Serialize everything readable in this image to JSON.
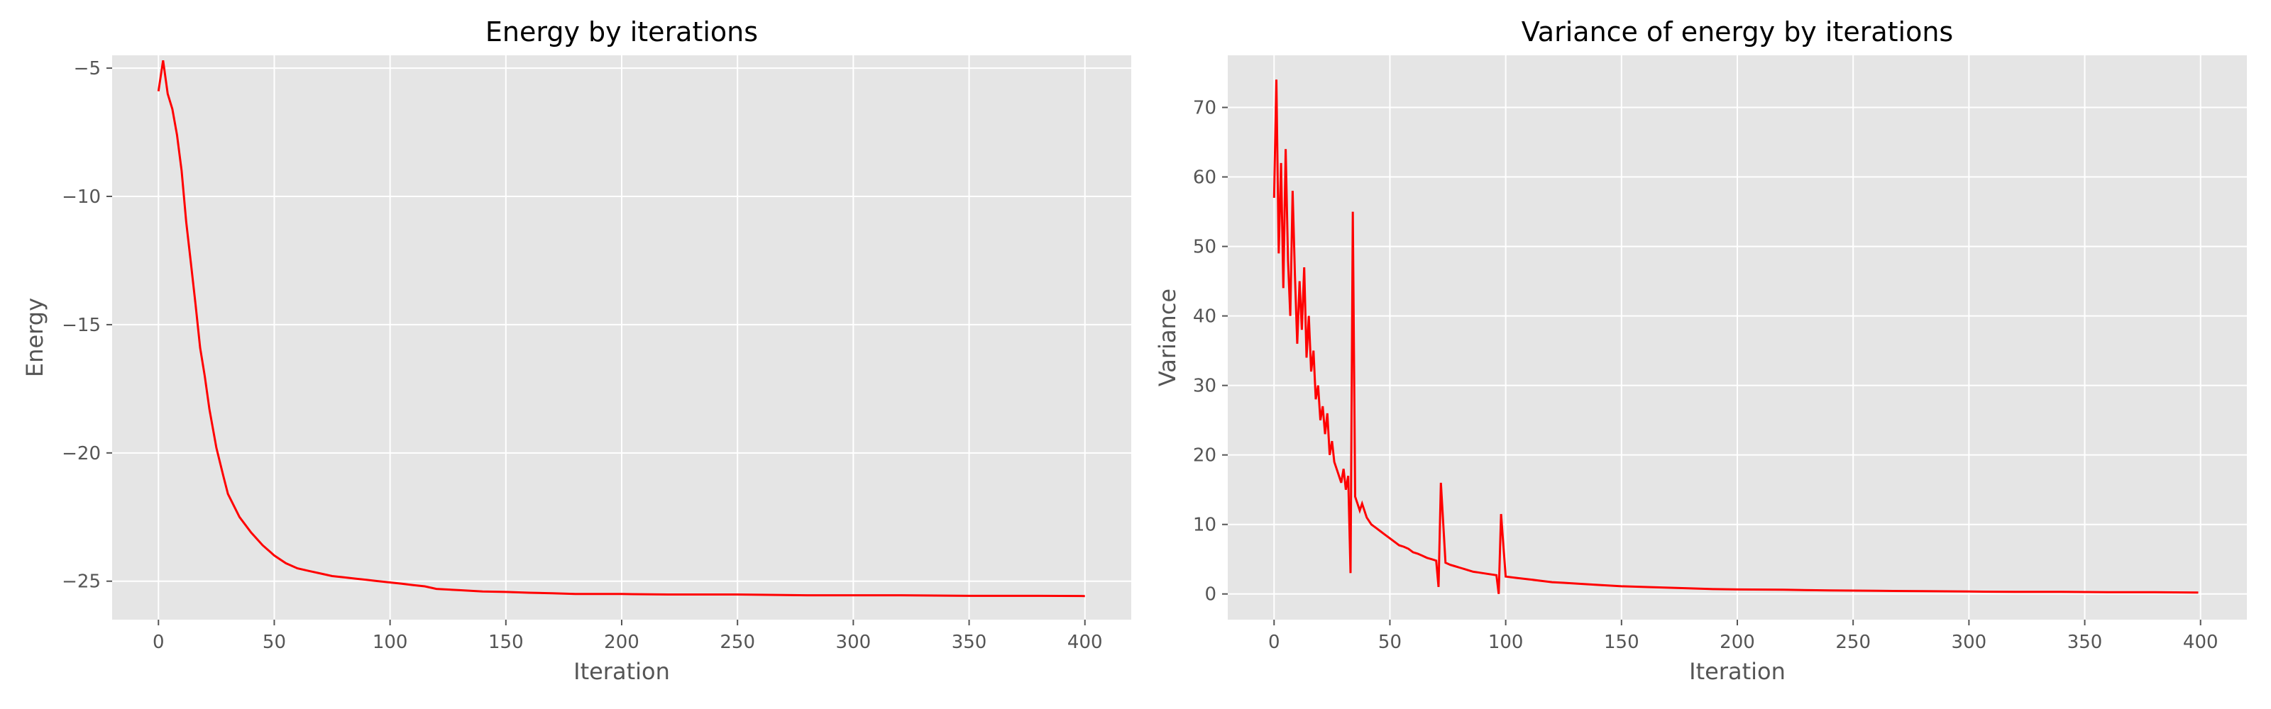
{
  "chart_data": [
    {
      "type": "line",
      "title": "Energy by iterations",
      "xlabel": "Iteration",
      "ylabel": "Energy",
      "xlim": [
        -20,
        420
      ],
      "ylim": [
        -26.5,
        -4.5
      ],
      "xticks": [
        0,
        50,
        100,
        150,
        200,
        250,
        300,
        350,
        400
      ],
      "yticks": [
        -25,
        -20,
        -15,
        -10,
        -5
      ],
      "xtick_labels": [
        "0",
        "50",
        "100",
        "150",
        "200",
        "250",
        "300",
        "350",
        "400"
      ],
      "ytick_labels": [
        "−25",
        "−20",
        "−15",
        "−10",
        "−5"
      ],
      "grid": true,
      "color": "#ff0000",
      "background": "#e5e5e5",
      "series": [
        {
          "x": [
            0,
            2,
            4,
            6,
            8,
            10,
            12,
            14,
            16,
            18,
            20,
            22,
            25,
            28,
            30,
            35,
            40,
            45,
            50,
            55,
            60,
            65,
            70,
            75,
            80,
            85,
            90,
            95,
            100,
            105,
            110,
            115,
            120,
            130,
            140,
            150,
            160,
            170,
            180,
            200,
            220,
            250,
            280,
            300,
            320,
            350,
            380,
            400
          ],
          "y": [
            -5.9,
            -4.7,
            -6.0,
            -6.6,
            -7.6,
            -9.0,
            -11.0,
            -12.6,
            -14.2,
            -15.9,
            -17.0,
            -18.3,
            -19.8,
            -20.9,
            -21.6,
            -22.5,
            -23.1,
            -23.6,
            -24.0,
            -24.3,
            -24.5,
            -24.6,
            -24.7,
            -24.8,
            -24.85,
            -24.9,
            -24.95,
            -25.0,
            -25.05,
            -25.1,
            -25.15,
            -25.2,
            -25.3,
            -25.35,
            -25.4,
            -25.42,
            -25.45,
            -25.47,
            -25.5,
            -25.5,
            -25.52,
            -25.52,
            -25.55,
            -25.55,
            -25.55,
            -25.57,
            -25.57,
            -25.58
          ]
        }
      ]
    },
    {
      "type": "line",
      "title": "Variance of energy by iterations",
      "xlabel": "Iteration",
      "ylabel": "Variance",
      "xlim": [
        -20,
        420
      ],
      "ylim": [
        -3.7,
        77.5
      ],
      "xticks": [
        0,
        50,
        100,
        150,
        200,
        250,
        300,
        350,
        400
      ],
      "yticks": [
        0,
        10,
        20,
        30,
        40,
        50,
        60,
        70
      ],
      "xtick_labels": [
        "0",
        "50",
        "100",
        "150",
        "200",
        "250",
        "300",
        "350",
        "400"
      ],
      "ytick_labels": [
        "0",
        "10",
        "20",
        "30",
        "40",
        "50",
        "60",
        "70"
      ],
      "grid": true,
      "color": "#ff0000",
      "background": "#e5e5e5",
      "series": [
        {
          "x": [
            0,
            1,
            2,
            3,
            4,
            5,
            6,
            7,
            8,
            9,
            10,
            11,
            12,
            13,
            14,
            15,
            16,
            17,
            18,
            19,
            20,
            21,
            22,
            23,
            24,
            25,
            26,
            27,
            28,
            29,
            30,
            31,
            32,
            33,
            34,
            35,
            36,
            37,
            38,
            40,
            42,
            44,
            46,
            48,
            50,
            52,
            54,
            56,
            58,
            60,
            62,
            64,
            66,
            68,
            70,
            71,
            72,
            74,
            76,
            78,
            80,
            82,
            84,
            86,
            88,
            90,
            92,
            94,
            96,
            97,
            98,
            100,
            105,
            110,
            115,
            120,
            125,
            130,
            140,
            150,
            160,
            170,
            180,
            190,
            200,
            220,
            240,
            260,
            280,
            300,
            320,
            340,
            360,
            380,
            399
          ],
          "y": [
            57,
            74,
            49,
            62,
            44,
            64,
            48,
            40,
            58,
            46,
            36,
            45,
            38,
            47,
            34,
            40,
            32,
            35,
            28,
            30,
            25,
            27,
            23,
            26,
            20,
            22,
            19,
            18,
            17,
            16,
            18,
            15,
            17,
            3,
            55,
            14,
            13,
            12,
            13,
            11,
            10,
            9.5,
            9,
            8.5,
            8,
            7.5,
            7,
            6.8,
            6.5,
            6,
            5.8,
            5.5,
            5.2,
            5,
            4.8,
            1,
            16,
            4.5,
            4.2,
            4,
            3.8,
            3.6,
            3.4,
            3.2,
            3.1,
            3,
            2.9,
            2.8,
            2.7,
            0,
            11.5,
            2.5,
            2.3,
            2.1,
            1.9,
            1.7,
            1.6,
            1.5,
            1.3,
            1.1,
            1.0,
            0.9,
            0.8,
            0.7,
            0.65,
            0.6,
            0.5,
            0.45,
            0.4,
            0.35,
            0.3,
            0.3,
            0.25,
            0.25,
            0.2
          ]
        }
      ]
    }
  ]
}
